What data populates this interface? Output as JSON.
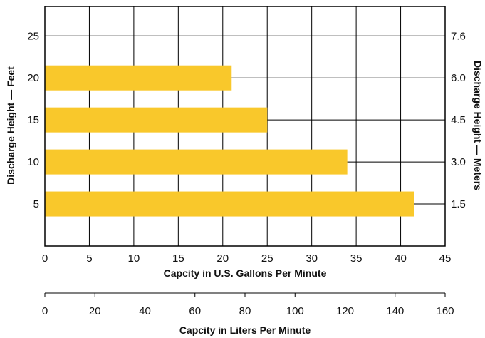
{
  "chart_data": {
    "type": "bar",
    "orientation": "horizontal",
    "categories": [
      "5",
      "10",
      "15",
      "20"
    ],
    "values": [
      41.5,
      34,
      25,
      21
    ],
    "bar_color": "#f9c82b",
    "xlim": [
      0,
      45
    ],
    "x_ticks": [
      "0",
      "5",
      "10",
      "15",
      "20",
      "25",
      "30",
      "35",
      "40",
      "45"
    ],
    "xlabel": "Capcity in U.S. Gallons Per Minute",
    "ylim": [
      0,
      28.5
    ],
    "y_ticks": [
      "5",
      "10",
      "15",
      "20",
      "25"
    ],
    "ylabel": "Discharge Height — Feet",
    "y2_ticks": [
      "1.5",
      "3.0",
      "4.5",
      "6.0",
      "7.6"
    ],
    "y2label": "Discharge Height — Meters",
    "x2lim": [
      0,
      160
    ],
    "x2_ticks": [
      "0",
      "20",
      "40",
      "60",
      "80",
      "100",
      "120",
      "140",
      "160"
    ],
    "x2label": "Capcity in Liters Per Minute",
    "grid": true
  }
}
